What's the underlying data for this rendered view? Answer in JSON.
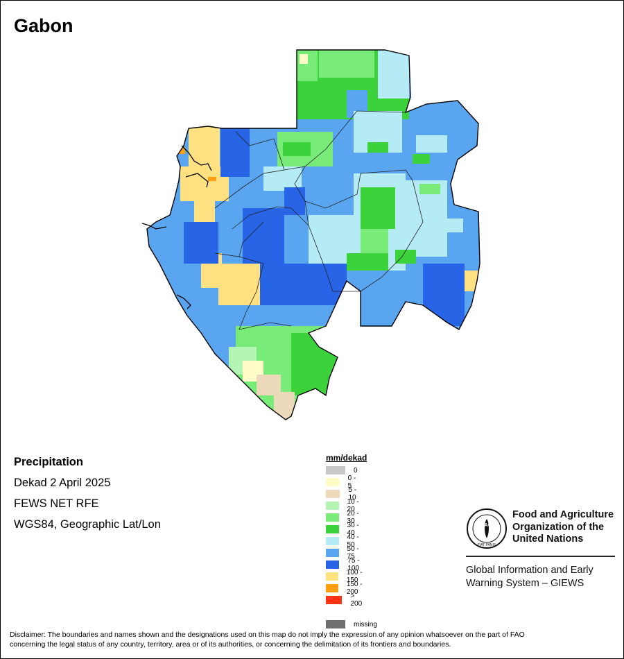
{
  "map_title": "Gabon",
  "info": {
    "variable": "Precipitation",
    "period": "Dekad 2 April 2025",
    "source": "FEWS NET RFE",
    "projection": "WGS84, Geographic Lat/Lon"
  },
  "legend": {
    "title": "mm/dekad",
    "items": [
      {
        "label": "0",
        "color": "#c8c8c8"
      },
      {
        "label": "0 - 5",
        "color": "#fffcc8"
      },
      {
        "label": "5 - 10",
        "color": "#ebd9b9"
      },
      {
        "label": "10 - 20",
        "color": "#b4f5b4"
      },
      {
        "label": "20 - 30",
        "color": "#78eb78"
      },
      {
        "label": "30 - 40",
        "color": "#3cd23c"
      },
      {
        "label": "40 - 50",
        "color": "#b4ebf5"
      },
      {
        "label": "50 - 75",
        "color": "#5aa5f0"
      },
      {
        "label": "75 - 100",
        "color": "#2864e6"
      },
      {
        "label": "100 - 150",
        "color": "#ffe182"
      },
      {
        "label": "150 - 200",
        "color": "#ffa014"
      },
      {
        "label": "> 200",
        "color": "#ff3214"
      },
      {
        "label": "missing",
        "color": "#6e6e6e"
      }
    ]
  },
  "org": {
    "name_line1": "Food and Agriculture",
    "name_line2": "Organization of the",
    "name_line3": "United Nations",
    "logo_text": "FAO",
    "logo_motto": "FIAT PANIS",
    "system_line1": "Global Information and Early",
    "system_line2": "Warning System – GIEWS"
  },
  "disclaimer_line1": "Disclaimer: The boundaries and names shown and the designations used on this map do not imply the expression of any opinion whatsoever on the part of FAO",
  "disclaimer_line2": "concerning the legal status of any country, territory, area or of its authorities, or concerning the delimitation of its frontiers and boundaries."
}
